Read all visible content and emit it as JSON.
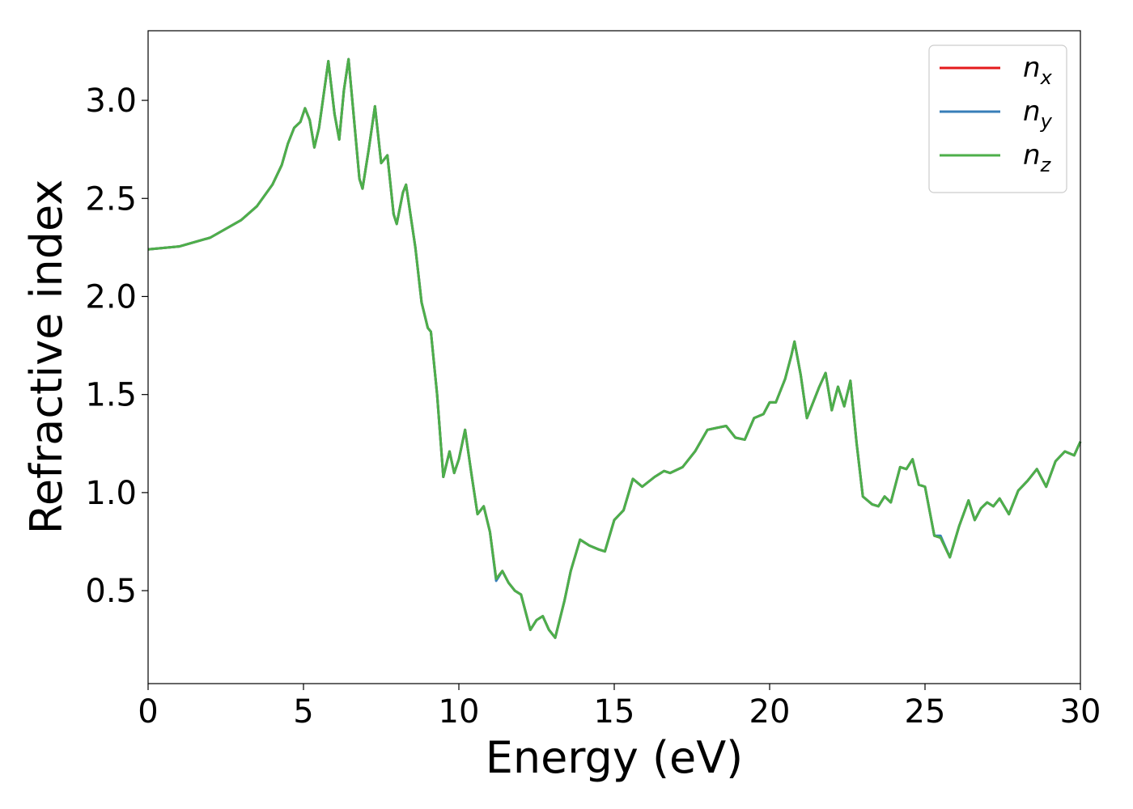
{
  "chart_data": {
    "type": "line",
    "xlabel": "Energy (eV)",
    "ylabel": "Refractive index",
    "xlim": [
      0,
      30
    ],
    "ylim": [
      0.026,
      3.355
    ],
    "xticks": [
      0,
      5,
      10,
      15,
      20,
      25,
      30
    ],
    "yticks": [
      0.5,
      {
        "value": 1,
        "label": "1.0"
      },
      1.5,
      {
        "value": 2,
        "label": "2.0"
      },
      2.5,
      {
        "value": 3,
        "label": "3.0"
      }
    ],
    "legend": "upper right",
    "x": [
      0,
      1,
      2,
      3,
      3.5,
      4,
      4.3,
      4.5,
      4.7,
      4.9,
      5.05,
      5.2,
      5.35,
      5.5,
      5.8,
      6.0,
      6.15,
      6.3,
      6.45,
      6.6,
      6.8,
      6.9,
      7.1,
      7.3,
      7.5,
      7.7,
      7.9,
      8.0,
      8.2,
      8.3,
      8.6,
      8.8,
      9.0,
      9.1,
      9.3,
      9.5,
      9.7,
      9.85,
      10.0,
      10.2,
      10.4,
      10.6,
      10.8,
      11.0,
      11.2,
      11.4,
      11.6,
      11.8,
      12.0,
      12.3,
      12.5,
      12.7,
      12.9,
      13.1,
      13.4,
      13.6,
      13.9,
      14.2,
      14.5,
      14.7,
      15.0,
      15.3,
      15.6,
      15.9,
      16.3,
      16.6,
      16.8,
      17.2,
      17.6,
      18.0,
      18.3,
      18.6,
      18.9,
      19.2,
      19.5,
      19.8,
      20.0,
      20.2,
      20.5,
      20.7,
      20.8,
      21.0,
      21.2,
      21.6,
      21.8,
      22.0,
      22.2,
      22.4,
      22.6,
      22.8,
      23.0,
      23.3,
      23.5,
      23.7,
      23.9,
      24.2,
      24.4,
      24.6,
      24.8,
      25.0,
      25.3,
      25.5,
      25.8,
      26.1,
      26.4,
      26.6,
      26.8,
      27.0,
      27.2,
      27.4,
      27.7,
      28.0,
      28.3,
      28.6,
      28.9,
      29.2,
      29.5,
      29.8,
      30.0
    ],
    "series": [
      {
        "name": "nx",
        "color": "#e41a1c",
        "values": [
          2.24,
          2.255,
          2.3,
          2.39,
          2.46,
          2.57,
          2.67,
          2.78,
          2.86,
          2.89,
          2.96,
          2.9,
          2.76,
          2.86,
          3.2,
          2.93,
          2.8,
          3.05,
          3.21,
          2.95,
          2.6,
          2.55,
          2.75,
          2.97,
          2.68,
          2.72,
          2.42,
          2.37,
          2.53,
          2.57,
          2.25,
          1.97,
          1.84,
          1.82,
          1.5,
          1.08,
          1.21,
          1.1,
          1.17,
          1.32,
          1.1,
          0.89,
          0.93,
          0.8,
          0.56,
          0.6,
          0.54,
          0.5,
          0.48,
          0.3,
          0.35,
          0.37,
          0.3,
          0.26,
          0.45,
          0.6,
          0.76,
          0.73,
          0.71,
          0.7,
          0.86,
          0.91,
          1.07,
          1.03,
          1.08,
          1.11,
          1.1,
          1.13,
          1.21,
          1.32,
          1.33,
          1.34,
          1.28,
          1.27,
          1.38,
          1.4,
          1.46,
          1.46,
          1.58,
          1.7,
          1.77,
          1.6,
          1.38,
          1.54,
          1.61,
          1.42,
          1.54,
          1.44,
          1.57,
          1.25,
          0.98,
          0.94,
          0.93,
          0.98,
          0.95,
          1.13,
          1.12,
          1.17,
          1.04,
          1.03,
          0.78,
          0.77,
          0.67,
          0.83,
          0.96,
          0.86,
          0.92,
          0.95,
          0.93,
          0.97,
          0.89,
          1.01,
          1.06,
          1.12,
          1.03,
          1.16,
          1.21,
          1.19,
          1.26
        ]
      },
      {
        "name": "ny",
        "color": "#377eb8",
        "values": [
          2.24,
          2.255,
          2.3,
          2.39,
          2.46,
          2.57,
          2.67,
          2.78,
          2.86,
          2.89,
          2.96,
          2.9,
          2.76,
          2.86,
          3.2,
          2.93,
          2.8,
          3.05,
          3.21,
          2.95,
          2.6,
          2.55,
          2.75,
          2.97,
          2.68,
          2.72,
          2.42,
          2.37,
          2.53,
          2.57,
          2.25,
          1.97,
          1.84,
          1.82,
          1.5,
          1.08,
          1.21,
          1.1,
          1.17,
          1.32,
          1.1,
          0.89,
          0.93,
          0.8,
          0.55,
          0.6,
          0.54,
          0.5,
          0.48,
          0.3,
          0.35,
          0.37,
          0.3,
          0.26,
          0.45,
          0.6,
          0.76,
          0.73,
          0.71,
          0.7,
          0.86,
          0.91,
          1.07,
          1.03,
          1.08,
          1.11,
          1.1,
          1.13,
          1.21,
          1.32,
          1.33,
          1.34,
          1.28,
          1.27,
          1.38,
          1.4,
          1.46,
          1.46,
          1.58,
          1.7,
          1.77,
          1.6,
          1.38,
          1.54,
          1.61,
          1.42,
          1.54,
          1.44,
          1.57,
          1.25,
          0.98,
          0.94,
          0.93,
          0.98,
          0.95,
          1.13,
          1.12,
          1.17,
          1.04,
          1.03,
          0.78,
          0.78,
          0.67,
          0.83,
          0.96,
          0.86,
          0.92,
          0.95,
          0.93,
          0.97,
          0.89,
          1.01,
          1.06,
          1.12,
          1.03,
          1.16,
          1.21,
          1.19,
          1.26
        ]
      },
      {
        "name": "nz",
        "color": "#4daf4a",
        "values": [
          2.24,
          2.255,
          2.3,
          2.39,
          2.46,
          2.57,
          2.67,
          2.78,
          2.86,
          2.89,
          2.96,
          2.9,
          2.76,
          2.86,
          3.2,
          2.93,
          2.8,
          3.05,
          3.21,
          2.95,
          2.6,
          2.55,
          2.75,
          2.97,
          2.68,
          2.72,
          2.42,
          2.37,
          2.53,
          2.57,
          2.25,
          1.97,
          1.84,
          1.82,
          1.5,
          1.08,
          1.21,
          1.1,
          1.17,
          1.32,
          1.1,
          0.89,
          0.93,
          0.8,
          0.56,
          0.6,
          0.54,
          0.5,
          0.48,
          0.3,
          0.35,
          0.37,
          0.3,
          0.26,
          0.45,
          0.6,
          0.76,
          0.73,
          0.71,
          0.7,
          0.86,
          0.91,
          1.07,
          1.03,
          1.08,
          1.11,
          1.1,
          1.13,
          1.21,
          1.32,
          1.33,
          1.34,
          1.28,
          1.27,
          1.38,
          1.4,
          1.46,
          1.46,
          1.58,
          1.7,
          1.77,
          1.6,
          1.38,
          1.54,
          1.61,
          1.42,
          1.54,
          1.44,
          1.57,
          1.25,
          0.98,
          0.94,
          0.93,
          0.98,
          0.95,
          1.13,
          1.12,
          1.17,
          1.04,
          1.03,
          0.78,
          0.77,
          0.67,
          0.83,
          0.96,
          0.86,
          0.92,
          0.95,
          0.93,
          0.97,
          0.89,
          1.01,
          1.06,
          1.12,
          1.03,
          1.16,
          1.21,
          1.19,
          1.26
        ]
      }
    ]
  }
}
